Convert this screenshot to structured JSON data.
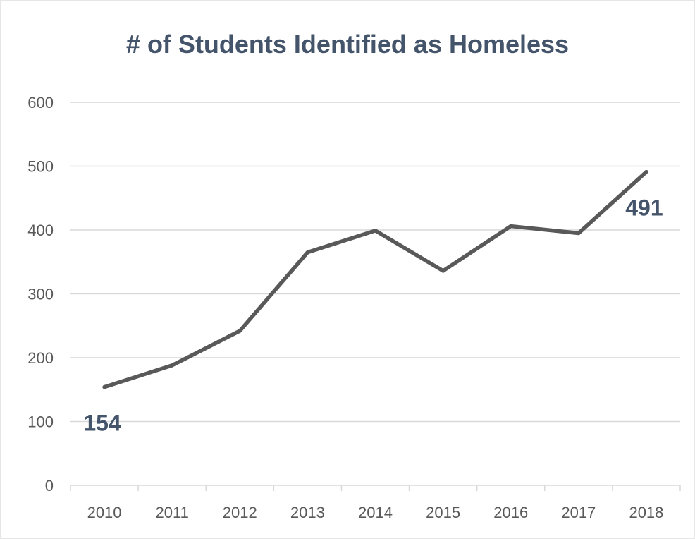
{
  "chart_data": {
    "type": "line",
    "title": "# of Students Identified as Homeless",
    "xlabel": "",
    "ylabel": "",
    "categories": [
      "2010",
      "2011",
      "2012",
      "2013",
      "2014",
      "2015",
      "2016",
      "2017",
      "2018"
    ],
    "series": [
      {
        "values": [
          154,
          188,
          242,
          365,
          399,
          336,
          406,
          395,
          491
        ],
        "color": "#595959"
      }
    ],
    "ylim": [
      0,
      600
    ],
    "yticks": [
      0,
      100,
      200,
      300,
      400,
      500,
      600
    ],
    "grid": true,
    "legend": "none",
    "data_labels": [
      {
        "index": 0,
        "text": "154",
        "placement": "below"
      },
      {
        "index": 8,
        "text": "491",
        "placement": "below"
      }
    ],
    "colors": {
      "title": "#44546a",
      "gridline": "#d9d9d9",
      "tick_label": "#595959",
      "data_label": "#44546a"
    }
  }
}
